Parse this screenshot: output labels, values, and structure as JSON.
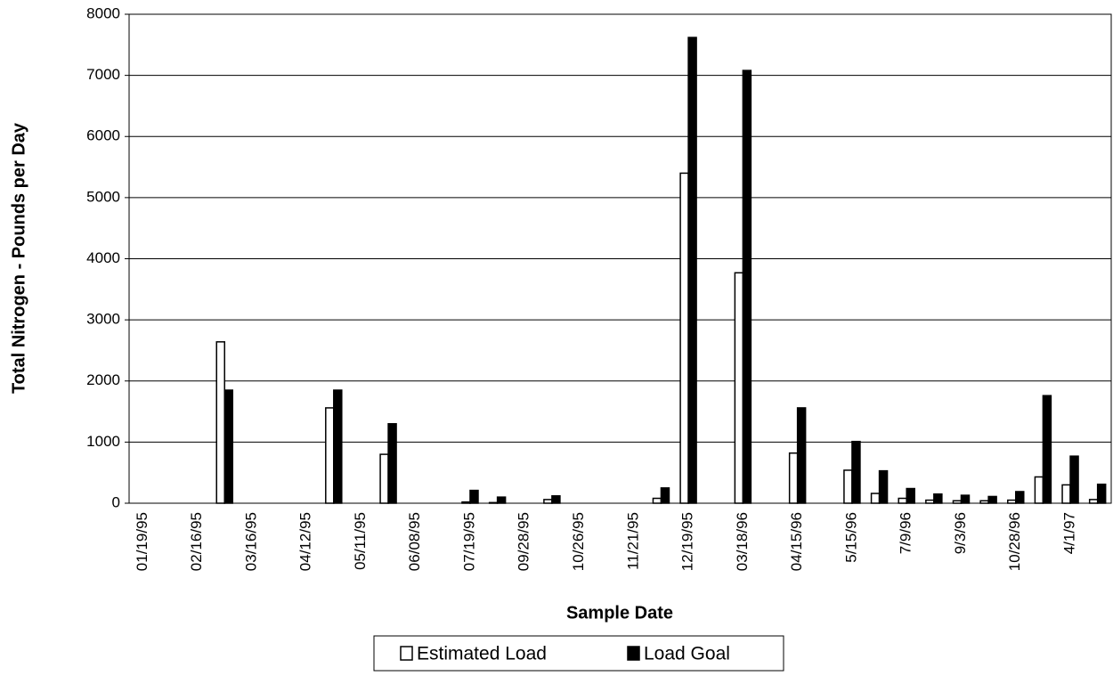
{
  "chart_data": {
    "type": "bar",
    "y_label": "Total Nitrogen - Pounds per Day",
    "x_label": "Sample Date",
    "categories": [
      "01/19/95",
      null,
      "02/16/95",
      null,
      "03/16/95",
      null,
      "04/12/95",
      null,
      "05/11/95",
      null,
      "06/08/95",
      null,
      "07/19/95",
      null,
      "09/28/95",
      null,
      "10/26/95",
      null,
      "11/21/95",
      null,
      "12/19/95",
      null,
      "03/18/96",
      null,
      "04/15/96",
      null,
      "5/15/96",
      null,
      "7/9/96",
      null,
      "9/3/96",
      null,
      "10/28/96",
      null,
      "4/1/97",
      null
    ],
    "series": [
      {
        "name": "Estimated Load",
        "color": "#ffffff",
        "values": [
          null,
          null,
          null,
          2640,
          null,
          null,
          null,
          1560,
          null,
          800,
          null,
          null,
          20,
          10,
          null,
          60,
          null,
          null,
          null,
          80,
          5400,
          null,
          3770,
          null,
          820,
          null,
          540,
          160,
          80,
          50,
          40,
          40,
          50,
          430,
          300,
          60
        ]
      },
      {
        "name": "Load Goal",
        "color": "#000000",
        "values": [
          null,
          null,
          null,
          1850,
          null,
          null,
          null,
          1850,
          null,
          1300,
          null,
          null,
          210,
          100,
          null,
          120,
          null,
          null,
          null,
          250,
          7620,
          null,
          7080,
          null,
          1560,
          null,
          1010,
          530,
          240,
          150,
          130,
          110,
          190,
          1760,
          770,
          310
        ]
      }
    ],
    "ylim": [
      0,
      8000
    ],
    "yticks": [
      0,
      1000,
      2000,
      3000,
      4000,
      5000,
      6000,
      7000,
      8000
    ],
    "grid": true
  }
}
